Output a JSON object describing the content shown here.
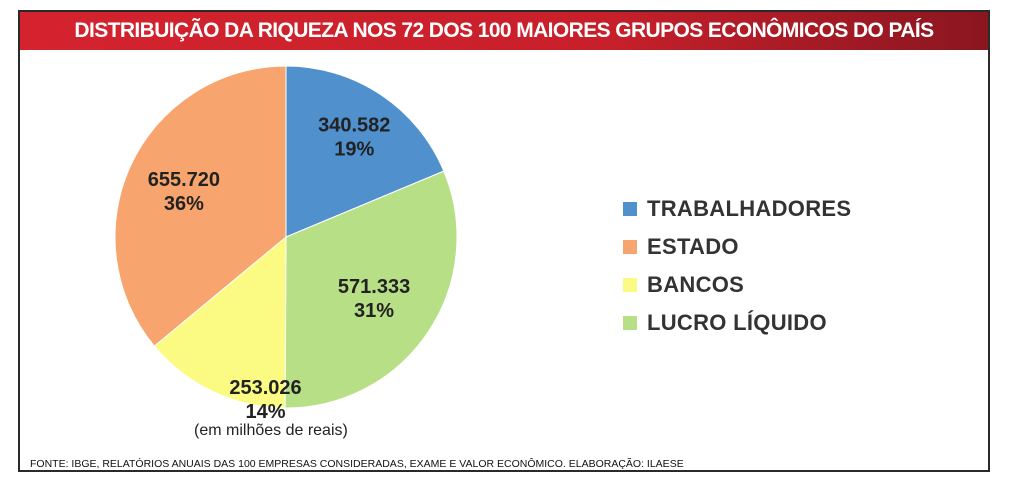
{
  "title": "DISTRIBUIÇÃO DA RIQUEZA NOS 72 DOS 100 MAIORES GRUPOS ECONÔMICOS DO PAÍS",
  "unit_note": "(em milhões de reais)",
  "source": "FONTE: IBGE, RELATÓRIOS ANUAIS DAS 100 EMPRESAS CONSIDERADAS, EXAME E VALOR ECONÔMICO. ELABORAÇÃO: ILAESE",
  "colors": {
    "title_bar": "#d4232e"
  },
  "chart_data": {
    "type": "pie",
    "title": "DISTRIBUIÇÃO DA RIQUEZA NOS 72 DOS 100 MAIORES GRUPOS ECONÔMICOS DO PAÍS",
    "legend_position": "right",
    "slices": [
      {
        "name": "TRABALHADORES",
        "value": 340582,
        "value_label": "340.582",
        "percent_label": "19%",
        "color": "#4f90cd"
      },
      {
        "name": "LUCRO LÍQUIDO",
        "value": 571333,
        "value_label": "571.333",
        "percent_label": "31%",
        "color": "#b7df86"
      },
      {
        "name": "BANCOS",
        "value": 253026,
        "value_label": "253.026",
        "percent_label": "14%",
        "color": "#fbfb84"
      },
      {
        "name": "ESTADO",
        "value": 655720,
        "value_label": "655.720",
        "percent_label": "36%",
        "color": "#f7a46e"
      }
    ],
    "legend": [
      "TRABALHADORES",
      "ESTADO",
      "BANCOS",
      "LUCRO LÍQUIDO"
    ]
  }
}
